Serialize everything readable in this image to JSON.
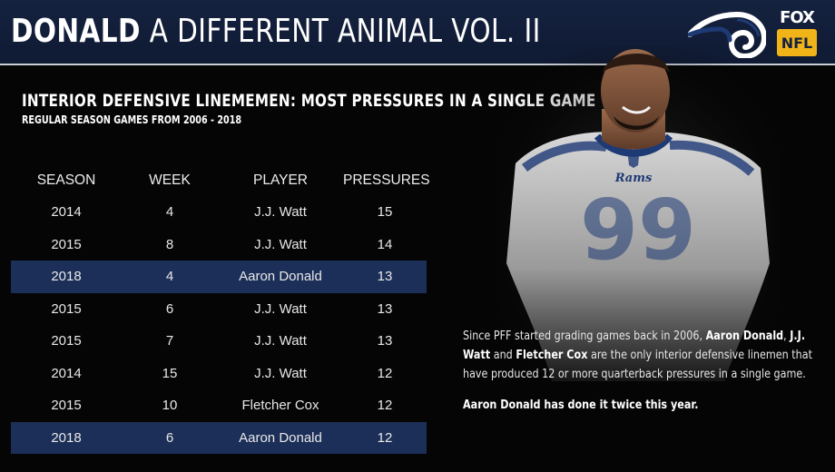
{
  "header": {
    "title_bold": "DONALD",
    "title_rest": "A DIFFERENT ANIMAL VOL. II",
    "network_word": "FOX",
    "league_word": "NFL",
    "team_logo_icon": "rams-horn-logo"
  },
  "subhead": {
    "title": "INTERIOR DEFENSIVE LINEMEMEN: MOST PRESSURES IN A SINGLE GAME",
    "note": "REGULAR SEASON GAMES FROM 2006 - 2018"
  },
  "table": {
    "columns": [
      "SEASON",
      "WEEK",
      "PLAYER",
      "PRESSURES"
    ],
    "rows": [
      [
        "2014",
        "4",
        "J.J. Watt",
        "15"
      ],
      [
        "2015",
        "8",
        "J.J. Watt",
        "14"
      ],
      [
        "2018",
        "4",
        "Aaron Donald",
        "13"
      ],
      [
        "2015",
        "6",
        "J.J. Watt",
        "13"
      ],
      [
        "2015",
        "7",
        "J.J. Watt",
        "13"
      ],
      [
        "2014",
        "15",
        "J.J. Watt",
        "12"
      ],
      [
        "2015",
        "10",
        "Fletcher Cox",
        "12"
      ],
      [
        "2018",
        "6",
        "Aaron Donald",
        "12"
      ]
    ],
    "highlight_color": "#1c2f58"
  },
  "player_image": {
    "jersey_number": "99",
    "jersey_team": "Rams"
  },
  "caption": {
    "p1_a": "Since PFF started grading games back in 2006,",
    "p1_b1": "Aaron Donald",
    "p1_c": ",",
    "p1_b2": "J.J. Watt",
    "p1_d": "and",
    "p1_b3": "Fletcher Cox",
    "p1_e": "are the only interior defensive linemen that have produced 12 or more quarterback pressures in a single game.",
    "p2": "Aaron Donald has done it twice this year."
  },
  "colors": {
    "navy": "#15223f",
    "gold": "#f0b419",
    "highlight": "#1c2f58"
  }
}
